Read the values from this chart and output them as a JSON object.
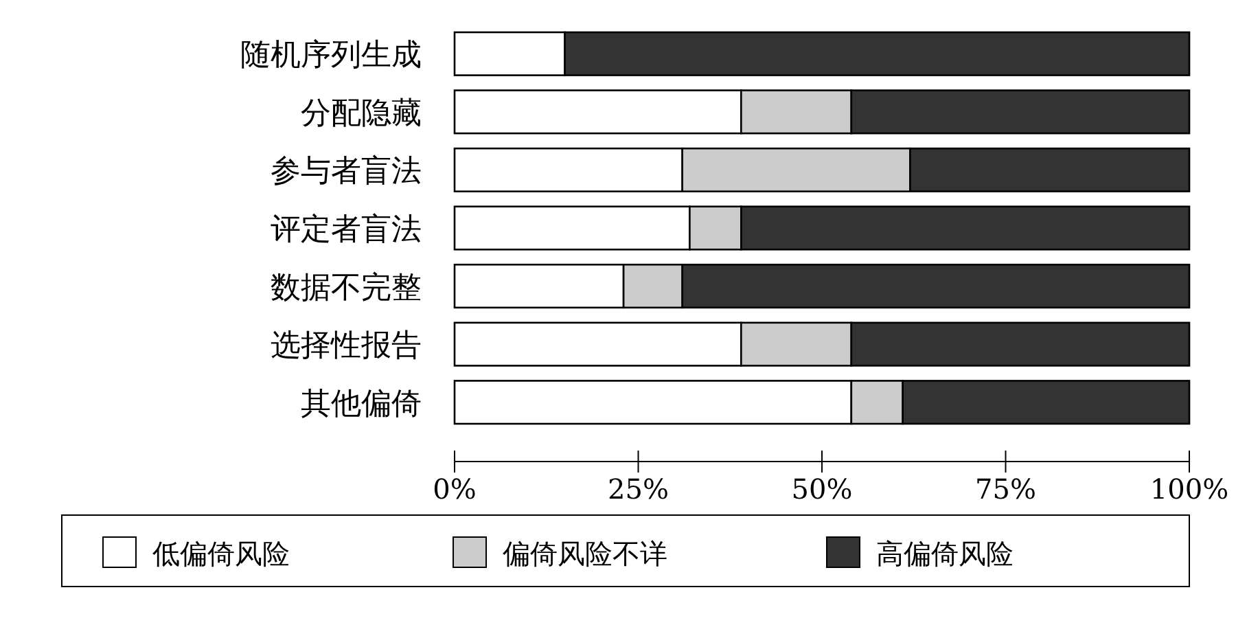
{
  "chart_data": {
    "type": "bar",
    "orientation": "horizontal",
    "stacked": true,
    "legend": "bottom",
    "grid": false,
    "categories": [
      "随机序列生成",
      "分配隐藏",
      "参与者盲法",
      "评定者盲法",
      "数据不完整",
      "选择性报告",
      "其他偏倚"
    ],
    "series": [
      {
        "name": "低偏倚风险",
        "color": "#ffffff",
        "values": [
          15,
          39,
          31,
          32,
          23,
          39,
          54
        ]
      },
      {
        "name": "偏倚风险不详",
        "color": "#cccccc",
        "values": [
          0,
          15,
          31,
          7,
          8,
          15,
          7
        ]
      },
      {
        "name": "高偏倚风险",
        "color": "#333333",
        "values": [
          85,
          46,
          38,
          61,
          69,
          46,
          39
        ]
      }
    ],
    "xlim": [
      0,
      100
    ],
    "xticks": [
      {
        "value": 0,
        "label": "0%"
      },
      {
        "value": 25,
        "label": "25%"
      },
      {
        "value": 50,
        "label": "50%"
      },
      {
        "value": 75,
        "label": "75%"
      },
      {
        "value": 100,
        "label": "100%"
      }
    ]
  }
}
